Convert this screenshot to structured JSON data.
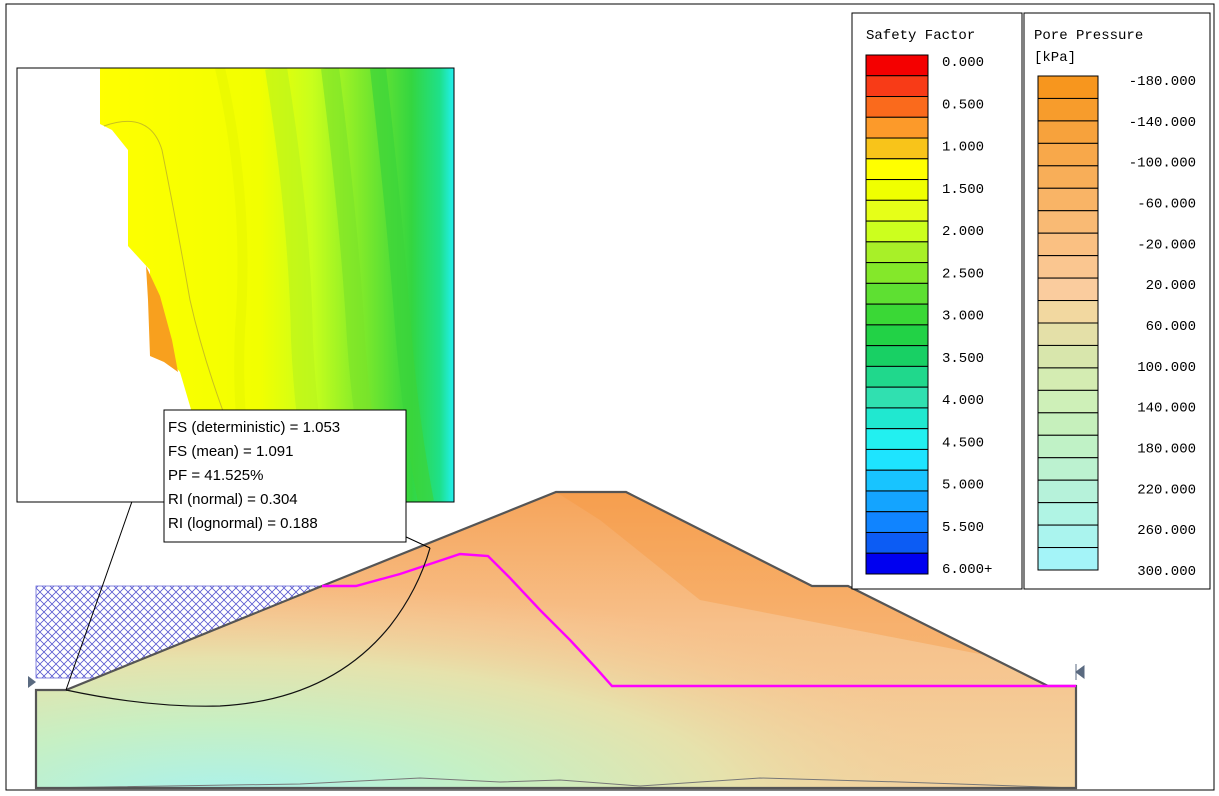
{
  "safety_factor_legend": {
    "title": "Safety Factor",
    "labels": [
      "0.000",
      "0.500",
      "1.000",
      "1.500",
      "2.000",
      "2.500",
      "3.000",
      "3.500",
      "4.000",
      "4.500",
      "5.000",
      "5.500",
      "6.000+"
    ],
    "colors": [
      "#f40000",
      "#f83b17",
      "#fa6a1c",
      "#fc9a2a",
      "#f8c41a",
      "#ffff00",
      "#f0ff00",
      "#e6ff18",
      "#ccff1e",
      "#a8f028",
      "#84e82a",
      "#5ee032",
      "#3ad836",
      "#22d246",
      "#18d064",
      "#20d88c",
      "#30e0b0",
      "#20e8d0",
      "#22f0f0",
      "#1ee4ff",
      "#18c4ff",
      "#14a4ff",
      "#1084ff",
      "#0c5cf4",
      "#0000f0"
    ]
  },
  "pore_pressure_legend": {
    "title": "Pore Pressure",
    "unit": "[kPa]",
    "labels": [
      "-180.000",
      "-140.000",
      "-100.000",
      "-60.000",
      "-20.000",
      "20.000",
      "60.000",
      "100.000",
      "140.000",
      "180.000",
      "220.000",
      "260.000",
      "300.000"
    ],
    "colors": [
      "#f7961e",
      "#f79c2c",
      "#f7a23c",
      "#f8a84a",
      "#f8ae58",
      "#f9b466",
      "#f9ba74",
      "#fac082",
      "#fac690",
      "#facc9e",
      "#f2d8a0",
      "#e4e0a8",
      "#d8e6ac",
      "#d4ecb2",
      "#cef0b8",
      "#c6f0bc",
      "#c0f2c6",
      "#bcf2d0",
      "#b6f2da",
      "#b0f4e4",
      "#aaf4ee",
      "#a4f4f8"
    ]
  },
  "results_box": {
    "fs_deterministic": "FS (deterministic) = 1.053",
    "fs_mean": "FS (mean) = 1.091",
    "pf": "PF = 41.525%",
    "ri_normal": "RI (normal) = 0.304",
    "ri_lognormal": "RI (lognormal) = 0.188"
  },
  "colors": {
    "water_table": "#ff00ff",
    "slope_outline": "#555555",
    "water_hatch": "#4444cc"
  }
}
